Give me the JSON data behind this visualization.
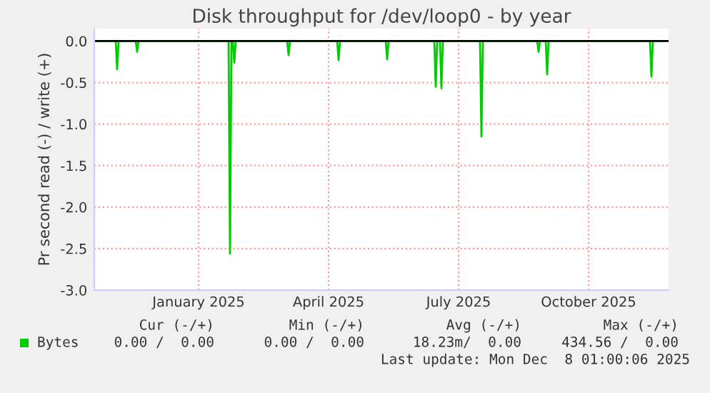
{
  "chart_data": {
    "type": "line",
    "title": "Disk throughput for /dev/loop0 - by year",
    "ylabel": "Pr second read (-) / write (+)",
    "x": [
      "2024-11-04",
      "2024-11-19",
      "2024-11-20",
      "2024-11-21",
      "2024-12-03",
      "2024-12-04",
      "2024-12-05",
      "2025-02-06",
      "2025-02-07",
      "2025-02-08",
      "2025-02-09",
      "2025-02-10",
      "2025-02-11",
      "2025-03-19",
      "2025-03-20",
      "2025-03-21",
      "2025-04-23",
      "2025-04-24",
      "2025-04-25",
      "2025-05-27",
      "2025-05-28",
      "2025-05-29",
      "2025-06-30",
      "2025-07-01",
      "2025-07-02",
      "2025-07-04",
      "2025-07-05",
      "2025-07-06",
      "2025-08-01",
      "2025-08-02",
      "2025-08-03",
      "2025-09-10",
      "2025-09-11",
      "2025-09-12",
      "2025-09-16",
      "2025-09-17",
      "2025-09-18",
      "2025-11-28",
      "2025-11-29",
      "2025-11-30",
      "2025-12-08"
    ],
    "series": [
      {
        "name": "Bytes",
        "color": "#00cc00",
        "values": [
          0,
          0,
          -0.34,
          0,
          0,
          -0.13,
          0,
          0,
          -2.56,
          0,
          0,
          -0.26,
          0,
          0,
          -0.17,
          0,
          0,
          -0.23,
          0,
          0,
          -0.22,
          0,
          0,
          -0.55,
          0,
          0,
          -0.57,
          0,
          0,
          -1.15,
          0,
          0,
          -0.13,
          0,
          0,
          -0.4,
          0,
          0,
          -0.43,
          0,
          0
        ]
      }
    ],
    "xlim": [
      "2024-11-04",
      "2025-12-11"
    ],
    "xticks": [
      {
        "value": "2025-01-16",
        "label": "January 2025"
      },
      {
        "value": "2025-04-17",
        "label": "April 2025"
      },
      {
        "value": "2025-07-17",
        "label": "July 2025"
      },
      {
        "value": "2025-10-16",
        "label": "October 2025"
      }
    ],
    "ylim": [
      -3.0,
      0.15
    ],
    "yticks": [
      {
        "value": 0,
        "label": "0.0"
      },
      {
        "value": -0.5,
        "label": "-0.5"
      },
      {
        "value": -1.0,
        "label": "-1.0"
      },
      {
        "value": -1.5,
        "label": "-1.5"
      },
      {
        "value": -2.0,
        "label": "-2.0"
      },
      {
        "value": -2.5,
        "label": "-2.5"
      },
      {
        "value": -3.0,
        "label": "-3.0"
      }
    ],
    "ref_lines": [
      {
        "axis": "y",
        "value": 0,
        "color": "#000000"
      }
    ],
    "grid": true,
    "legend": "bottom left",
    "annotations": [
      "Cur (-/+)",
      "Min (-/+)",
      "Avg (-/+)",
      "Max (-/+)",
      "0.00 /  0.00",
      "0.00 /  0.00",
      "18.23m/  0.00",
      "434.56 /  0.00",
      "Last update: Mon Dec  8 01:00:06 2025"
    ]
  }
}
